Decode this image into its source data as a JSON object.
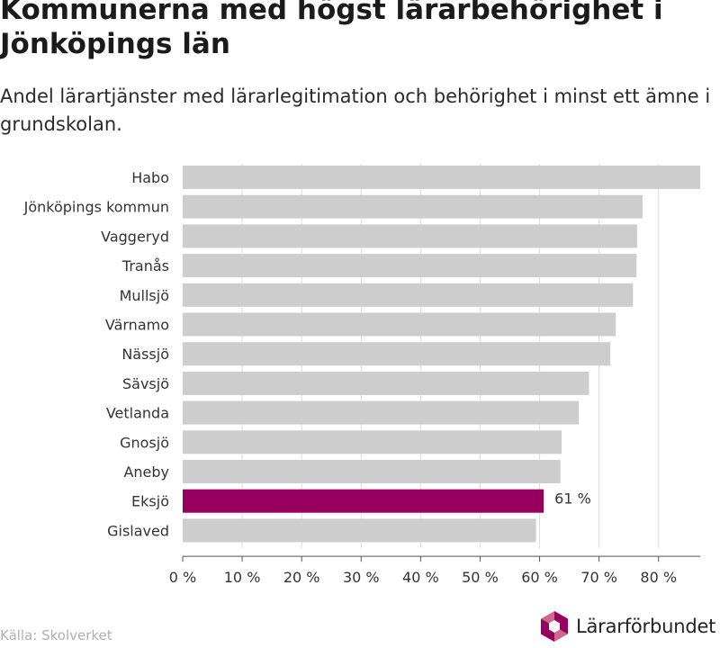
{
  "title": "Kommunerna med högst lärarbehörighet i Jönköpings län",
  "subtitle": "Andel lärartjänster med lärarlegitimation och behörighet i minst ett ämne i grundskolan.",
  "source": "Källa: Skolverket",
  "logo_text": "Lärarförbundet",
  "colors": {
    "bar": "#cdcdcd",
    "highlight": "#98005f",
    "grid": "#dddddd",
    "axis": "#555555",
    "logo_dark": "#98005f",
    "logo_light": "#d1668f"
  },
  "chart_data": {
    "type": "bar",
    "orientation": "horizontal",
    "categories": [
      "Habo",
      "Jönköpings kommun",
      "Vaggeryd",
      "Tranås",
      "Mullsjö",
      "Värnamo",
      "Nässjö",
      "Sävsjö",
      "Vetlanda",
      "Gnosjö",
      "Aneby",
      "Eksjö",
      "Gislaved"
    ],
    "values": [
      87,
      77.3,
      76.4,
      76.3,
      75.7,
      72.8,
      71.9,
      68.3,
      66.6,
      63.7,
      63.5,
      60.7,
      59.4
    ],
    "highlight_category": "Eksjö",
    "data_labels": [
      {
        "category": "Eksjö",
        "text": "61 %"
      }
    ],
    "x_ticks": [
      "0 %",
      "10 %",
      "20 %",
      "30 %",
      "40 %",
      "50 %",
      "60 %",
      "70 %",
      "80 %"
    ],
    "x_tick_values": [
      0,
      10,
      20,
      30,
      40,
      50,
      60,
      70,
      80
    ],
    "xlim": [
      0,
      87
    ],
    "grid": true
  }
}
